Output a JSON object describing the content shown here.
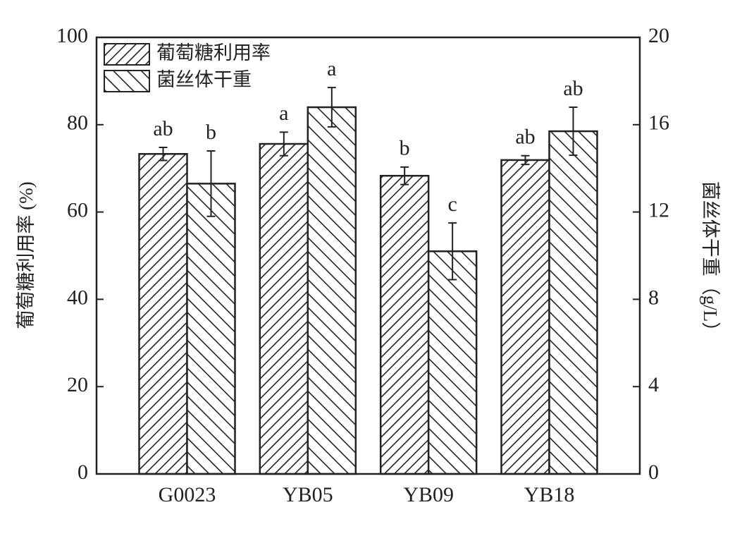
{
  "chart_data": {
    "type": "bar",
    "categories": [
      "G0023",
      "YB05",
      "YB09",
      "YB18"
    ],
    "ylabel": "葡萄糖利用率 (%)",
    "y2label": "菌丝体干重（g/L）",
    "ylim": [
      0,
      100
    ],
    "yticks": [
      0,
      20,
      40,
      60,
      80,
      100
    ],
    "y2lim": [
      0,
      20
    ],
    "y2ticks": [
      0,
      4,
      8,
      12,
      16,
      20
    ],
    "legend": "upper left",
    "series": [
      {
        "name": "葡萄糖利用率",
        "color": "#222222",
        "hatch": "/",
        "axis": "y",
        "values": [
          73.3,
          75.6,
          68.3,
          71.9
        ],
        "errors": [
          1.5,
          2.7,
          2.0,
          1.0
        ],
        "letters": [
          "ab",
          "a",
          "b",
          "ab"
        ]
      },
      {
        "name": "菌丝体干重",
        "color": "#222222",
        "hatch": "\\",
        "axis": "y2",
        "values": [
          13.3,
          16.8,
          10.2,
          15.7
        ],
        "errors": [
          1.5,
          0.9,
          1.3,
          1.1
        ],
        "letters": [
          "b",
          "a",
          "c",
          "ab"
        ]
      }
    ]
  }
}
